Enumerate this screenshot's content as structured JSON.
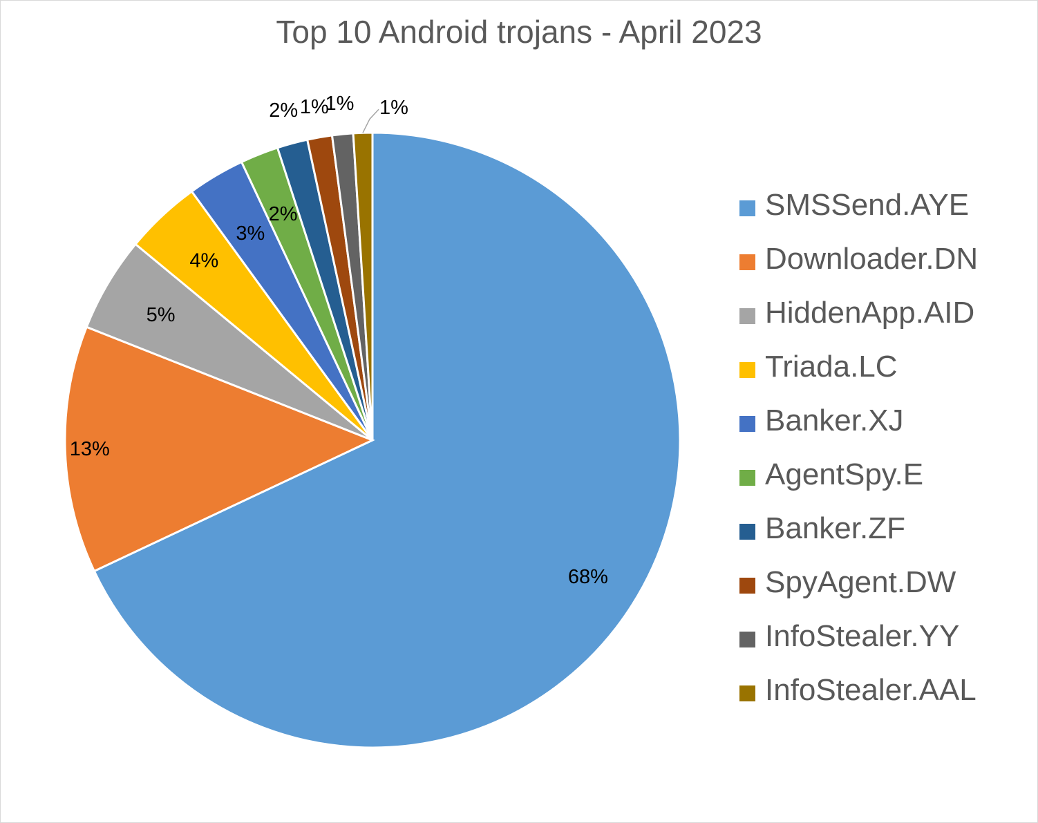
{
  "chart_data": {
    "type": "pie",
    "title": "Top 10 Android trojans - April 2023",
    "legend_position": "right",
    "slices": [
      {
        "name": "SMSSend.AYE",
        "value": 68,
        "label": "68%",
        "color": "#5b9bd5"
      },
      {
        "name": "Downloader.DN",
        "value": 13,
        "label": "13%",
        "color": "#ed7d31"
      },
      {
        "name": "HiddenApp.AID",
        "value": 5,
        "label": "5%",
        "color": "#a5a5a5"
      },
      {
        "name": "Triada.LC",
        "value": 4,
        "label": "4%",
        "color": "#ffc000"
      },
      {
        "name": "Banker.XJ",
        "value": 3,
        "label": "3%",
        "color": "#4472c4"
      },
      {
        "name": "AgentSpy.E",
        "value": 2,
        "label": "2%",
        "color": "#70ad47"
      },
      {
        "name": "Banker.ZF",
        "value": 1.6,
        "label": "2%",
        "color": "#255e91"
      },
      {
        "name": "SpyAgent.DW",
        "value": 1.3,
        "label": "1%",
        "color": "#9e480e"
      },
      {
        "name": "InfoStealer.YY",
        "value": 1.1,
        "label": "1%",
        "color": "#636363"
      },
      {
        "name": "InfoStealer.AAL",
        "value": 1,
        "label": "1%",
        "color": "#997300"
      }
    ]
  }
}
